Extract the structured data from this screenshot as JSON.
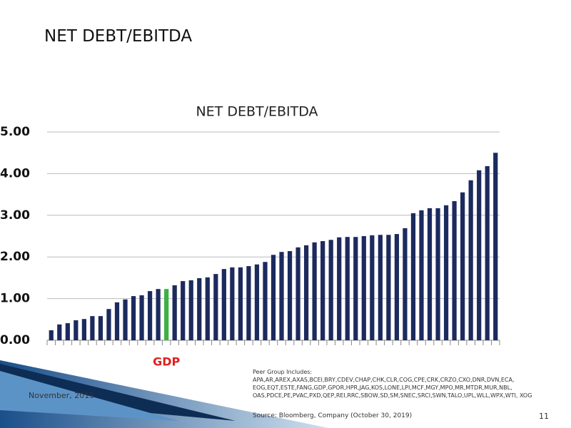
{
  "slide": {
    "title": "NET DEBT/EBITDA",
    "date": "November, 2019",
    "peer_group_title": "Peer Group Includes:",
    "peer_group": "APA,AR,AREX,AXAS,BCEI,BRY,CDEV,CHAP,CHK,CLR,COG,CPE,CRK,CRZO,CXO,DNR,DVN,ECA, EOG,EQT,ESTE,FANG,GDP,GPOR,HPR,JAG,KOS,LONE,LPI,MCF,MGY,MPO,MR,MTDR,MUR,NBL, OAS,PDCE,PE,PVAC,PXD,QEP,REI,RRC,SBOW,SD,SM,SNEC,SRCI,SWN,TALO,UPL,WLL,WPX,WTI, XOG",
    "source": "Source: Bloomberg, Company (October 30, 2019)",
    "page": "11"
  },
  "chart_data": {
    "type": "bar",
    "title": "NET DEBT/EBITDA",
    "categories": [
      null,
      null,
      null,
      null,
      null,
      null,
      null,
      null,
      null,
      null,
      null,
      null,
      null,
      null,
      "GDP",
      null,
      null,
      null,
      null,
      null,
      null,
      null,
      null,
      null,
      null,
      null,
      null,
      null,
      null,
      null,
      null,
      null,
      null,
      null,
      null,
      null,
      null,
      null,
      null,
      null,
      null,
      null,
      null,
      null,
      null,
      null,
      null,
      null,
      null,
      null,
      null,
      null,
      null,
      null,
      null
    ],
    "values": [
      0.24,
      0.38,
      0.41,
      0.48,
      0.51,
      0.58,
      0.58,
      0.75,
      0.91,
      0.98,
      1.06,
      1.08,
      1.18,
      1.23,
      1.23,
      1.32,
      1.42,
      1.44,
      1.49,
      1.51,
      1.59,
      1.71,
      1.75,
      1.75,
      1.78,
      1.82,
      1.88,
      2.05,
      2.12,
      2.14,
      2.23,
      2.28,
      2.35,
      2.38,
      2.41,
      2.47,
      2.48,
      2.48,
      2.5,
      2.52,
      2.53,
      2.53,
      2.55,
      2.69,
      3.05,
      3.12,
      3.17,
      3.17,
      3.24,
      3.34,
      3.55,
      3.84,
      4.08,
      4.18,
      4.5
    ],
    "color": "#1c2a5e",
    "highlight_color": "#3cb043",
    "label_color": "#e02020",
    "ylim": [
      0,
      5
    ],
    "yticks": [
      {
        "value": 0,
        "label": "0.00"
      },
      {
        "value": 1,
        "label": "1.00"
      },
      {
        "value": 2,
        "label": "2.00"
      },
      {
        "value": 3,
        "label": "3.00"
      },
      {
        "value": 4,
        "label": "4.00"
      },
      {
        "value": 5,
        "label": "5.00"
      }
    ],
    "grid": true
  }
}
